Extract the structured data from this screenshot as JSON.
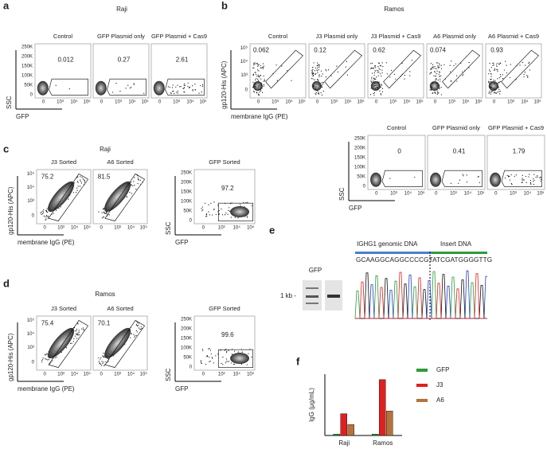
{
  "panels": {
    "a": {
      "label": "a",
      "title": "Raji",
      "groups": [
        {
          "y_label": "SSC",
          "x_label": "GFP",
          "y_ticks": [
            "250K",
            "200K",
            "150K",
            "100K",
            "50K",
            "0"
          ],
          "x_ticks": [
            "0",
            "10³",
            "10⁴",
            "10⁵"
          ],
          "plots": [
            {
              "title": "Control",
              "gate": "0.012"
            },
            {
              "title": "GFP Plasmid only",
              "gate": "0.27"
            },
            {
              "title": "GFP Plasmid + Cas9",
              "gate": "2.61"
            }
          ]
        }
      ]
    },
    "b": {
      "label": "b",
      "title": "Ramos",
      "groups": [
        {
          "y_label": "gp120-His (APC)",
          "x_label": "membrane IgG (PE)",
          "y_ticks": [
            "10⁵",
            "10⁴",
            "10³",
            "0"
          ],
          "x_ticks": [
            "0",
            "10³",
            "10⁴",
            "10⁵"
          ],
          "plots": [
            {
              "title": "Control",
              "gate": "0.062"
            },
            {
              "title": "J3 Plasmid only",
              "gate": "0.12"
            },
            {
              "title": "J3 Plasmid + Cas9",
              "gate": "0.62"
            },
            {
              "title": "A6 Plasmid only",
              "gate": "0.074"
            },
            {
              "title": "A6 Plasmid + Cas9",
              "gate": "0.93"
            }
          ]
        },
        {
          "y_label": "SSC",
          "x_label": "GFP",
          "y_ticks": [
            "250K",
            "200K",
            "150K",
            "100K",
            "50K",
            "0"
          ],
          "x_ticks": [
            "0",
            "10³",
            "10⁴",
            "10⁵"
          ],
          "plots": [
            {
              "title": "Control",
              "gate": "0"
            },
            {
              "title": "GFP Plasmid only",
              "gate": "0.41"
            },
            {
              "title": "GFP Plasmid + Cas9",
              "gate": "1.79"
            }
          ]
        }
      ]
    },
    "c": {
      "label": "c",
      "title": "Raji",
      "groups": [
        {
          "y_label": "gp120-His (APC)",
          "x_label": "membrane IgG (PE)",
          "y_ticks": [
            "10⁵",
            "10⁴",
            "10³",
            "0"
          ],
          "x_ticks": [
            "0",
            "10³",
            "10⁴",
            "10⁵"
          ],
          "plots": [
            {
              "title": "J3 Sorted",
              "gate": "75.2"
            },
            {
              "title": "A6 Sorted",
              "gate": "81.5"
            }
          ]
        },
        {
          "y_label": "SSC",
          "x_label": "GFP",
          "y_ticks": [
            "250K",
            "200K",
            "150K",
            "100K",
            "50K",
            "0"
          ],
          "x_ticks": [
            "0",
            "10³",
            "10⁴",
            "10⁵"
          ],
          "plots": [
            {
              "title": "GFP Sorted",
              "gate": "97.2"
            }
          ]
        }
      ]
    },
    "d": {
      "label": "d",
      "title": "Ramos",
      "groups": [
        {
          "y_label": "gp120-His (APC)",
          "x_label": "membrane IgG (PE)",
          "y_ticks": [
            "10⁵",
            "10⁴",
            "10³",
            "0"
          ],
          "x_ticks": [
            "0",
            "10³",
            "10⁴",
            "10⁵"
          ],
          "plots": [
            {
              "title": "J3 Sorted",
              "gate": "75.4"
            },
            {
              "title": "A6 Sorted",
              "gate": "70.1"
            }
          ]
        },
        {
          "y_label": "SSC",
          "x_label": "GFP",
          "y_ticks": [
            "250K",
            "200K",
            "150K",
            "100K",
            "50K",
            "0"
          ],
          "x_ticks": [
            "0",
            "10³",
            "10⁴",
            "10⁵"
          ],
          "plots": [
            {
              "title": "GFP Sorted",
              "gate": "99.6"
            }
          ]
        }
      ]
    },
    "e": {
      "label": "e",
      "gel_title": "GFP",
      "marker": "1 kb -",
      "left_region": "IGHG1 genomic DNA",
      "right_region": "Insert DNA",
      "sequence": "GCAAGGCAGGCCCCGTATCGATGGGGTTG"
    },
    "f": {
      "label": "f",
      "chart": {
        "type": "bar",
        "y_label": "IgG (μg/mL)",
        "categories": [
          "Raji",
          "Ramos"
        ],
        "ylim": [
          0,
          45
        ],
        "series": [
          {
            "name": "GFP",
            "color": "#2e9b3a",
            "values": [
              1,
              1
            ]
          },
          {
            "name": "J3",
            "color": "#e02020",
            "values": [
              16,
              41
            ]
          },
          {
            "name": "A6",
            "color": "#b5733a",
            "values": [
              8,
              18
            ]
          }
        ]
      }
    }
  }
}
